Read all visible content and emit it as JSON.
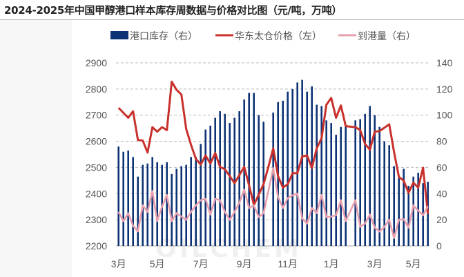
{
  "title": "2024-2025年中国甲醇港口样本库存周数据与价格对比图（元/吨，万吨）",
  "watermark": "OILCHEM",
  "chart_data": {
    "type": "bar+line",
    "title": "2024-2025年中国甲醇港口样本库存周数据与价格对比图（元/吨，万吨）",
    "legend_position": "top",
    "grid": true,
    "left_axis": {
      "range": [
        2200,
        2900
      ],
      "ticks": [
        "2900",
        "2800",
        "2700",
        "2600",
        "2500",
        "2400",
        "2300",
        "2200"
      ]
    },
    "right_axis": {
      "range": [
        0,
        140
      ],
      "ticks": [
        "140",
        "120",
        "100",
        "80",
        "60",
        "40",
        "20",
        "0"
      ]
    },
    "x_tick_labels": [
      {
        "label": "3月",
        "index": 0
      },
      {
        "label": "5月",
        "index": 8
      },
      {
        "label": "7月",
        "index": 17
      },
      {
        "label": "9月",
        "index": 26
      },
      {
        "label": "11月",
        "index": 35
      },
      {
        "label": "1月",
        "index": 44
      },
      {
        "label": "3月",
        "index": 53
      },
      {
        "label": "5月",
        "index": 61
      }
    ],
    "series": [
      {
        "name": "港口库存（右）",
        "type": "bar",
        "axis": "right",
        "color": "#0d3275",
        "values": [
          76,
          72,
          73,
          68,
          53,
          62,
          63,
          68,
          64,
          62,
          64,
          55,
          59,
          61,
          62,
          68,
          68,
          78,
          89,
          92,
          98,
          103,
          101,
          94,
          98,
          103,
          112,
          117,
          117,
          100,
          95,
          null,
          102,
          110,
          111,
          118,
          120,
          125,
          127,
          118,
          122,
          108,
          107,
          96,
          94,
          85,
          91,
          91,
          null,
          96,
          97,
          101,
          107,
          100,
          91,
          80,
          77,
          61,
          52,
          59,
          46,
          53,
          56,
          48,
          49
        ]
      },
      {
        "name": "华东太仓价格（左）",
        "type": "line",
        "axis": "left",
        "color": "#c8302c",
        "values": [
          2728,
          2709,
          2690,
          2715,
          2605,
          2603,
          2557,
          2654,
          2637,
          2654,
          2643,
          2828,
          2797,
          2779,
          2647,
          2586,
          2533,
          2511,
          2546,
          2515,
          2555,
          2502,
          2493,
          2467,
          2440,
          2471,
          2502,
          2432,
          2357,
          2396,
          2436,
          2502,
          2573,
          2467,
          2423,
          2436,
          2478,
          2478,
          2542,
          2546,
          2498,
          2573,
          2612,
          2740,
          2766,
          2690,
          2737,
          2658,
          2656,
          2654,
          2643,
          2590,
          2568,
          2637,
          2639,
          2652,
          2665,
          2559,
          2464,
          2449,
          2403,
          2442,
          2423,
          2499,
          2322
        ]
      },
      {
        "name": "到港量（右）",
        "type": "line",
        "axis": "right",
        "color": "#e8a0ae",
        "values": [
          26,
          19,
          25,
          15.5,
          11,
          31,
          26,
          42,
          19,
          30,
          39,
          19,
          25,
          22.5,
          20,
          26,
          31,
          35,
          36,
          24,
          36,
          35,
          26,
          20,
          26,
          33,
          43,
          29,
          31,
          22,
          25,
          42,
          59.5,
          37.5,
          29,
          36.6,
          38.7,
          40,
          21,
          17,
          29,
          25,
          39,
          22,
          22.5,
          23.4,
          35,
          19,
          27,
          35,
          14.6,
          17,
          24,
          14,
          11,
          14.6,
          20,
          6,
          20,
          20.4,
          14,
          31,
          27,
          23.4,
          30.5
        ]
      }
    ]
  }
}
